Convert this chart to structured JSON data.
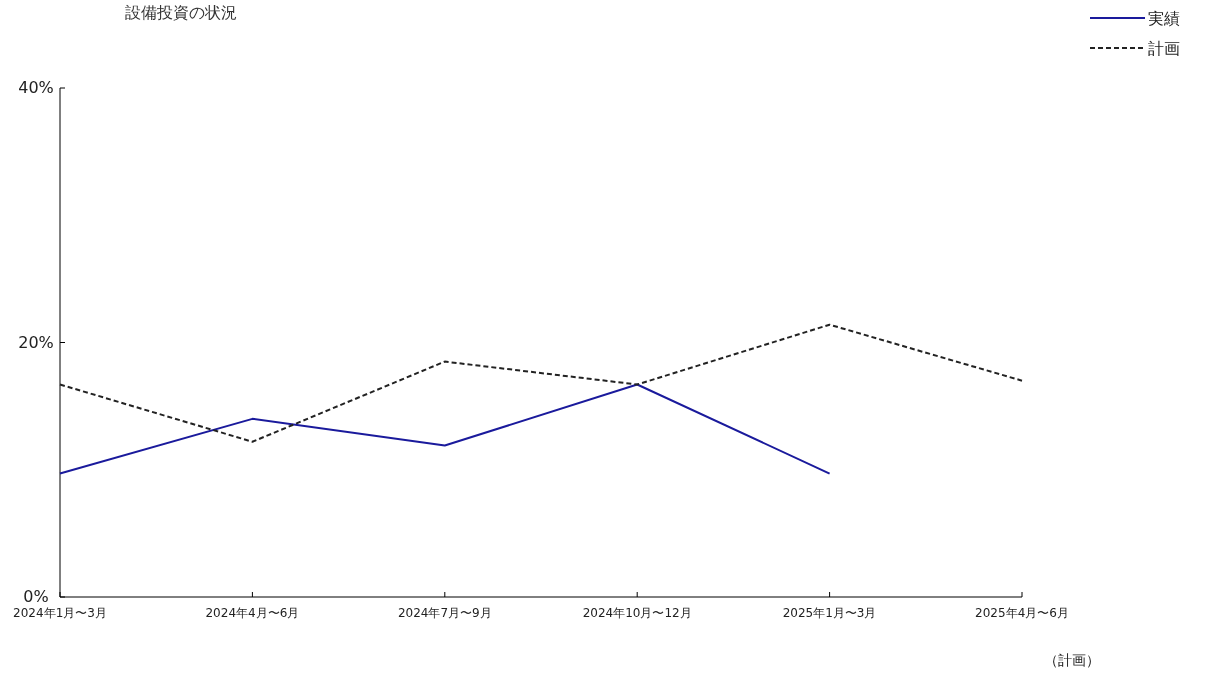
{
  "chart_data": {
    "type": "line",
    "title": "設備投資の状況",
    "categories": [
      "2024年1月〜3月",
      "2024年4月〜6月",
      "2024年7月〜9月",
      "2024年10月〜12月",
      "2025年1月〜3月",
      "2025年4月〜6月"
    ],
    "series": [
      {
        "name": "実績",
        "color": "#1a1a9c",
        "line_style": "solid",
        "values": [
          9.7,
          14.0,
          11.9,
          16.7,
          9.7,
          null
        ]
      },
      {
        "name": "計画",
        "color": "#222222",
        "line_style": "dashed",
        "values": [
          16.7,
          12.2,
          18.5,
          16.7,
          21.4,
          17.0
        ]
      }
    ],
    "ylim": [
      0,
      40
    ],
    "yticks": [
      {
        "value": 0,
        "label": "0%"
      },
      {
        "value": 20,
        "label": "20%"
      },
      {
        "value": 40,
        "label": "40%"
      }
    ],
    "grid": false,
    "legend": "top right",
    "marker": "none",
    "annotations": [
      "（計画）"
    ]
  }
}
